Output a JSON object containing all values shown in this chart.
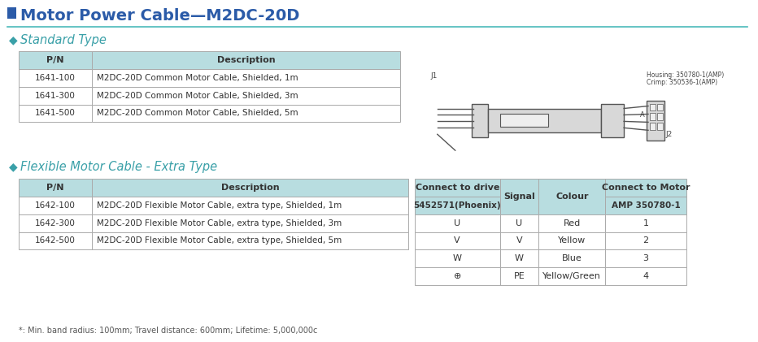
{
  "title": "Motor Power Cable—M2DC-20D",
  "section1_title": "Standard Type",
  "section2_title": "Flexible Motor Cable - Extra Type",
  "header_bg": "#B8DDE0",
  "row_bg": "#FFFFFF",
  "table_border": "#AAAAAA",
  "std_table_headers": [
    "P/N",
    "Description"
  ],
  "std_table_rows": [
    [
      "1641-100",
      "M2DC-20D Common Motor Cable, Shielded, 1m"
    ],
    [
      "1641-300",
      "M2DC-20D Common Motor Cable, Shielded, 3m"
    ],
    [
      "1641-500",
      "M2DC-20D Common Motor Cable, Shielded, 5m"
    ]
  ],
  "flex_table_headers": [
    "P/N",
    "Description"
  ],
  "flex_table_rows": [
    [
      "1642-100",
      "M2DC-20D Flexible Motor Cable, extra type, Shielded, 1m"
    ],
    [
      "1642-300",
      "M2DC-20D Flexible Motor Cable, extra type, Shielded, 3m"
    ],
    [
      "1642-500",
      "M2DC-20D Flexible Motor Cable, extra type, Shielded, 5m"
    ]
  ],
  "footnote": "*: Min. band radius: 100mm; Travel distance: 600mm; Lifetime: 5,000,000c",
  "signal_col1_header": "Connect to drive",
  "signal_col2_header": "Signal",
  "signal_col3_header": "Colour",
  "signal_col4_header": "Connect to Motor",
  "signal_sub1": "5452571(Phoenix)",
  "signal_sub4": "AMP 350780-1",
  "signal_rows": [
    [
      "U",
      "U",
      "Red",
      "1"
    ],
    [
      "V",
      "V",
      "Yellow",
      "2"
    ],
    [
      "W",
      "W",
      "Blue",
      "3"
    ],
    [
      "⊕",
      "PE",
      "Yellow/Green",
      "4"
    ]
  ],
  "housing_label": "Housing: 350780-1(AMP)",
  "crimp_label": "Crimp: 350536-1(AMP)",
  "j1_label": "J1",
  "j2_label": "J2",
  "a_label": "A",
  "bg_color": "#FFFFFF",
  "title_color": "#2B5BA8",
  "title_square_color": "#2B5BA8",
  "section_color": "#3AA0A8",
  "diamond_color": "#3AA0A8",
  "teal_line_color": "#4ABABA",
  "text_color": "#333333",
  "small_text_color": "#555555",
  "diagram_line_color": "#555555",
  "diagram_fill": "#D8D8D8",
  "diagram_fill2": "#EEEEEE"
}
